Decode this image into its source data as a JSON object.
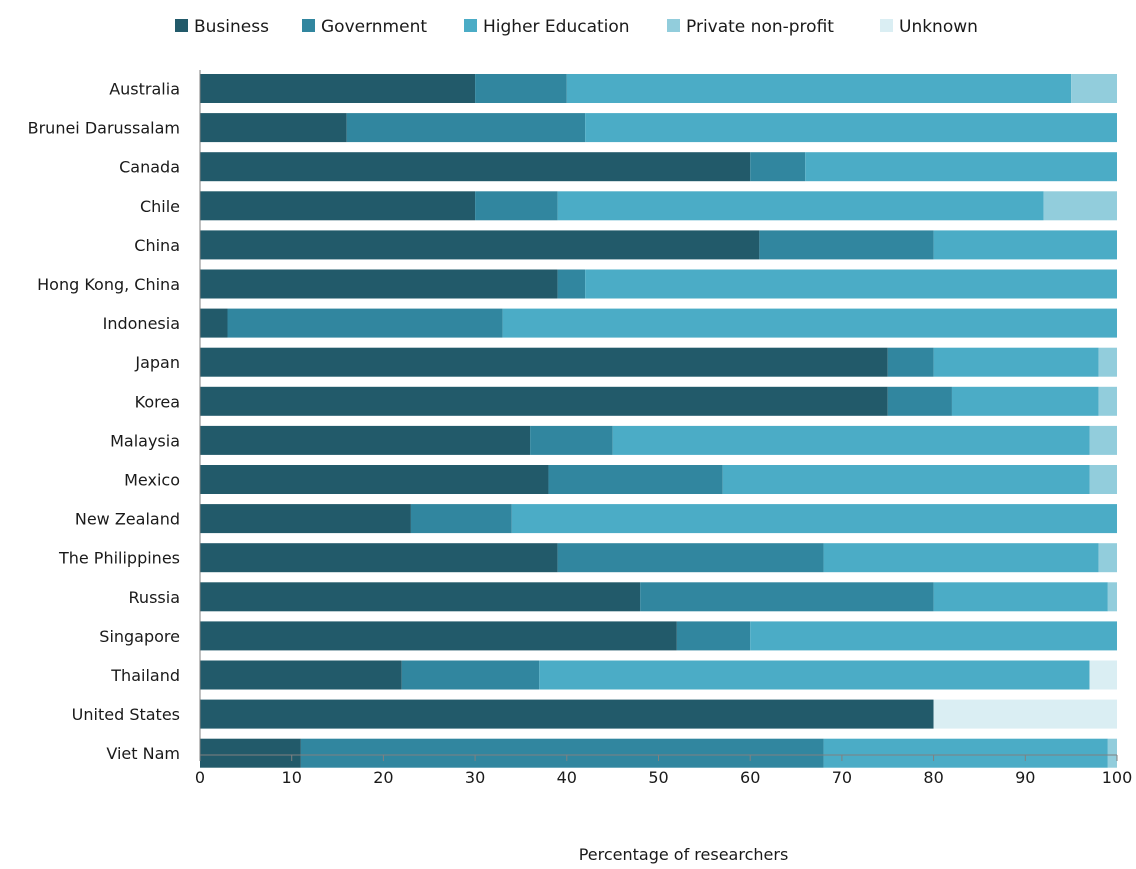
{
  "chart_data": {
    "type": "bar",
    "orientation": "horizontal",
    "stacked": true,
    "title": "",
    "xlabel": "Percentage of researchers",
    "ylabel": "",
    "xlim": [
      0,
      100
    ],
    "xticks": [
      "0",
      "10",
      "20",
      "30",
      "40",
      "50",
      "60",
      "70",
      "80",
      "90",
      "100"
    ],
    "legend_position": "top",
    "grid": false,
    "categories": [
      "Australia",
      "Brunei Darussalam",
      "Canada",
      "Chile",
      "China",
      "Hong Kong, China",
      "Indonesia",
      "Japan",
      "Korea",
      "Malaysia",
      "Mexico",
      "New Zealand",
      "The Philippines",
      "Russia",
      "Singapore",
      "Thailand",
      "United States",
      "Viet Nam"
    ],
    "series": [
      {
        "name": "Business",
        "color": "#225a6a",
        "values": [
          30,
          16,
          60,
          30,
          61,
          39,
          3,
          75,
          75,
          36,
          38,
          23,
          39,
          48,
          52,
          22,
          80,
          11
        ]
      },
      {
        "name": "Government",
        "color": "#31869f",
        "values": [
          10,
          26,
          6,
          9,
          19,
          3,
          30,
          5,
          7,
          9,
          19,
          11,
          29,
          32,
          8,
          15,
          0,
          57
        ]
      },
      {
        "name": "Higher Education",
        "color": "#4bacc6",
        "values": [
          55,
          58,
          34,
          53,
          20,
          58,
          67,
          18,
          16,
          52,
          40,
          66,
          30,
          19,
          40,
          60,
          0,
          31
        ]
      },
      {
        "name": "Private non-profit",
        "color": "#92cddc",
        "values": [
          5,
          0,
          0,
          8,
          0,
          0,
          0,
          2,
          2,
          3,
          3,
          0,
          2,
          1,
          0,
          0,
          0,
          1
        ]
      },
      {
        "name": "Unknown",
        "color": "#daeef3",
        "values": [
          0,
          0,
          0,
          0,
          0,
          0,
          0,
          0,
          0,
          0,
          0,
          0,
          0,
          0,
          0,
          3,
          20,
          0
        ]
      }
    ]
  }
}
